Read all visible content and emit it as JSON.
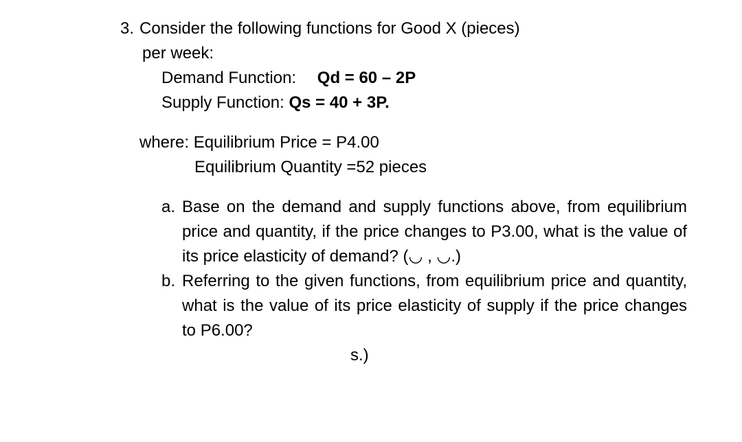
{
  "question": {
    "number": "3.",
    "intro_line1": "Consider the following functions for Good X (pieces)",
    "intro_line2": "per week:",
    "demand_label": "Demand Function:",
    "demand_formula": "Qd = 60 – 2P",
    "supply_label": "Supply Function: ",
    "supply_formula": "Qs = 40 + 3P.",
    "where_line1": "where: Equilibrium Price   = P4.00",
    "where_line2": "Equilibrium Quantity   =52 pieces",
    "sub_a": {
      "marker": "a.",
      "text": "Base on the demand and supply functions above, from equilibrium price and quantity, if the price changes to P3.00, what is the value of its price elasticity of demand? (◡ , ◡.)"
    },
    "sub_b": {
      "marker": "b.",
      "text": "Referring to the given functions, from equilibrium price and quantity, what is the value of its price elasticity of supply if the price changes to P6.00?"
    },
    "bottom_marker": "s.)"
  },
  "styling": {
    "background_color": "#ffffff",
    "text_color": "#000000",
    "font_family": "Arial",
    "base_font_size": 24,
    "line_height": 1.5,
    "bold_formulas": true
  }
}
